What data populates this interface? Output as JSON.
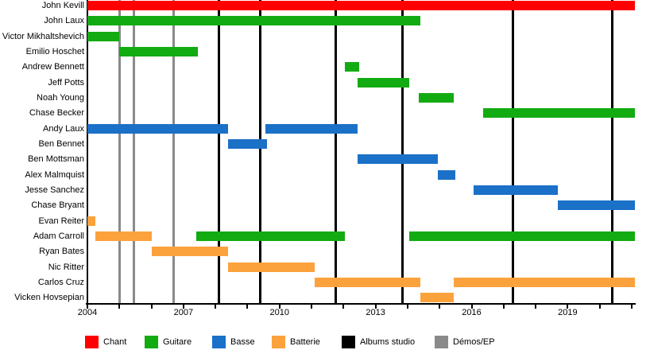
{
  "chart_data": {
    "type": "gantt-timeline",
    "description": "Band members timeline: colored bars show each member's tenure by role; vertical lines mark studio albums and demos/EPs",
    "x_axis": {
      "start": 2004,
      "end": 2021.1,
      "year_tick_step": 1,
      "labels": [
        {
          "year": 2004,
          "text": "2004"
        },
        {
          "year": 2007,
          "text": "2007"
        },
        {
          "year": 2010,
          "text": "2010"
        },
        {
          "year": 2013,
          "text": "2013"
        },
        {
          "year": 2016,
          "text": "2016"
        },
        {
          "year": 2019,
          "text": "2019"
        }
      ]
    },
    "colors": {
      "chant": "#FF0000",
      "guitare": "#12AB12",
      "basse": "#1B70C8",
      "batterie": "#FBA23D",
      "albums_studio": "#000000",
      "demos_ep": "#8A8A8A"
    },
    "members": [
      {
        "name": "John Kevill",
        "segments": [
          {
            "role": "chant",
            "start": 2004,
            "end": null
          }
        ]
      },
      {
        "name": "John Laux",
        "segments": [
          {
            "role": "guitare",
            "start": 2004,
            "end": 2014.4
          }
        ]
      },
      {
        "name": "Victor Mikhaltshevich",
        "segments": [
          {
            "role": "guitare",
            "start": 2004,
            "end": 2005.0
          }
        ]
      },
      {
        "name": "Emilio Hoschet",
        "segments": [
          {
            "role": "guitare",
            "start": 2005.0,
            "end": 2007.45
          }
        ]
      },
      {
        "name": "Andrew Bennett",
        "segments": [
          {
            "role": "guitare",
            "start": 2012.05,
            "end": 2012.5
          }
        ]
      },
      {
        "name": "Jeff Potts",
        "segments": [
          {
            "role": "guitare",
            "start": 2012.45,
            "end": 2014.05
          }
        ]
      },
      {
        "name": "Noah Young",
        "segments": [
          {
            "role": "guitare",
            "start": 2014.35,
            "end": 2015.45
          }
        ]
      },
      {
        "name": "Chase Becker",
        "segments": [
          {
            "role": "guitare",
            "start": 2016.35,
            "end": null
          }
        ]
      },
      {
        "name": "Andy Laux",
        "segments": [
          {
            "role": "basse",
            "start": 2004,
            "end": 2008.4
          },
          {
            "role": "basse",
            "start": 2009.55,
            "end": 2012.45
          }
        ]
      },
      {
        "name": "Ben Bennet",
        "segments": [
          {
            "role": "basse",
            "start": 2008.4,
            "end": 2009.6
          }
        ]
      },
      {
        "name": "Ben Mottsman",
        "segments": [
          {
            "role": "basse",
            "start": 2012.45,
            "end": 2014.95
          }
        ]
      },
      {
        "name": "Alex Malmquist",
        "segments": [
          {
            "role": "basse",
            "start": 2014.95,
            "end": 2015.5
          }
        ]
      },
      {
        "name": "Jesse Sanchez",
        "segments": [
          {
            "role": "basse",
            "start": 2016.05,
            "end": 2018.7
          }
        ]
      },
      {
        "name": "Chase Bryant",
        "segments": [
          {
            "role": "basse",
            "start": 2018.7,
            "end": null
          }
        ]
      },
      {
        "name": "Evan Reiter",
        "segments": [
          {
            "role": "batterie",
            "start": 2004,
            "end": 2004.25
          }
        ]
      },
      {
        "name": "Adam Carroll",
        "segments": [
          {
            "role": "batterie",
            "start": 2004.25,
            "end": 2006.0
          },
          {
            "role": "guitare",
            "start": 2007.4,
            "end": 2012.05
          },
          {
            "role": "guitare",
            "start": 2014.05,
            "end": null
          }
        ]
      },
      {
        "name": "Ryan Bates",
        "segments": [
          {
            "role": "batterie",
            "start": 2006.0,
            "end": 2008.4
          }
        ]
      },
      {
        "name": "Nic Ritter",
        "segments": [
          {
            "role": "batterie",
            "start": 2008.4,
            "end": 2011.1
          }
        ]
      },
      {
        "name": "Carlos Cruz",
        "segments": [
          {
            "role": "batterie",
            "start": 2011.1,
            "end": 2014.4
          },
          {
            "role": "batterie",
            "start": 2015.45,
            "end": null
          }
        ]
      },
      {
        "name": "Vicken Hovsepian",
        "segments": [
          {
            "role": "batterie",
            "start": 2014.4,
            "end": 2015.45
          }
        ]
      }
    ],
    "events": {
      "albums_studio": [
        2008.1,
        2009.4,
        2011.75,
        2013.85,
        2017.3,
        2020.4
      ],
      "demos_ep": [
        2005.0,
        2005.45,
        2006.7
      ]
    }
  },
  "legend": {
    "items": [
      {
        "key": "chant",
        "label": "Chant"
      },
      {
        "key": "guitare",
        "label": "Guitare"
      },
      {
        "key": "basse",
        "label": "Basse"
      },
      {
        "key": "batterie",
        "label": "Batterie"
      },
      {
        "key": "albums_studio",
        "label": "Albums studio"
      },
      {
        "key": "demos_ep",
        "label": "Démos/EP"
      }
    ]
  }
}
